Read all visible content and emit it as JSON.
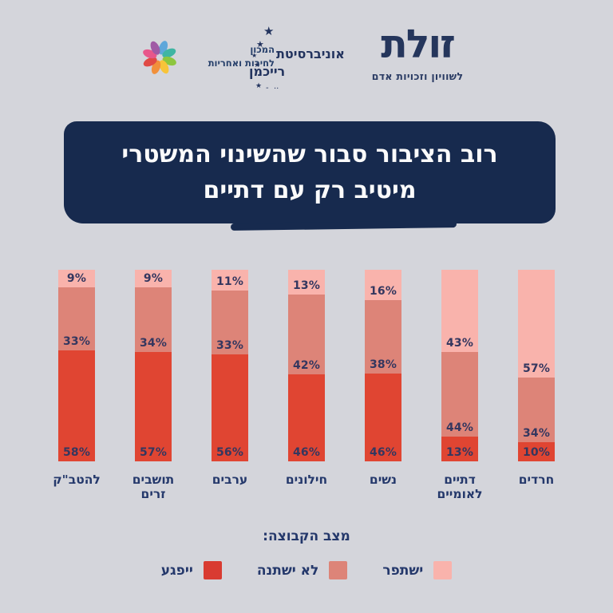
{
  "page": {
    "background_color": "#d4d5db",
    "accent_navy": "#172a4e"
  },
  "header": {
    "institute": {
      "icon": "pinwheel-flower-icon",
      "line1": "המכון",
      "line2": "לחירות ואחריות",
      "petal_colors": [
        "#5ea7da",
        "#3fb5a3",
        "#8dc63f",
        "#f8c43a",
        "#f1903b",
        "#e04a45",
        "#e8578b",
        "#a05aa5"
      ]
    },
    "university": {
      "icon": "stars-arc-icon",
      "line1": "אוניברסיטת",
      "line2": "רייכמן"
    },
    "zulat": {
      "wordmark": "זולת",
      "tagline": "לשוויון וזכויות אדם"
    }
  },
  "title_banner": {
    "line1": "רוב הציבור סבור שהשינוי המשטרי",
    "line2": "מיטיב רק עם דתיים",
    "background": "#172a4e",
    "text_color": "#fbfbfb"
  },
  "chart_data": {
    "type": "bar",
    "stacked": true,
    "orientation": "vertical",
    "stack_order": "top-to-bottom",
    "unit": "%",
    "value_suffix": "%",
    "title": "רוב הציבור סבור שהשינוי המשטרי מיטיב רק עם דתיים",
    "categories": [
      "להטב\"ק",
      "תושבים זרים",
      "ערבים",
      "חילונים",
      "נשים",
      "דתיים לאומיים",
      "חרדים"
    ],
    "series": [
      {
        "name": "ישתפר",
        "color": "#f9b3ac",
        "values": [
          9,
          9,
          11,
          13,
          16,
          43,
          57
        ]
      },
      {
        "name": "לא ישתנה",
        "color": "#dd8478",
        "values": [
          33,
          34,
          33,
          42,
          38,
          44,
          34
        ]
      },
      {
        "name": "ייפגע",
        "color": "#e04532",
        "values": [
          58,
          57,
          56,
          46,
          46,
          13,
          10
        ]
      }
    ],
    "legend_title": "מצב הקבוצה:",
    "legend_position": "bottom",
    "grid": false,
    "axes_visible": false
  },
  "legend": {
    "title": "מצב הקבוצה:",
    "items": [
      {
        "label": "ישתפר",
        "color": "#f9b3ac"
      },
      {
        "label": "לא ישתנה",
        "color": "#dd8478"
      },
      {
        "label": "ייפגע",
        "color": "#d93b31"
      }
    ]
  }
}
